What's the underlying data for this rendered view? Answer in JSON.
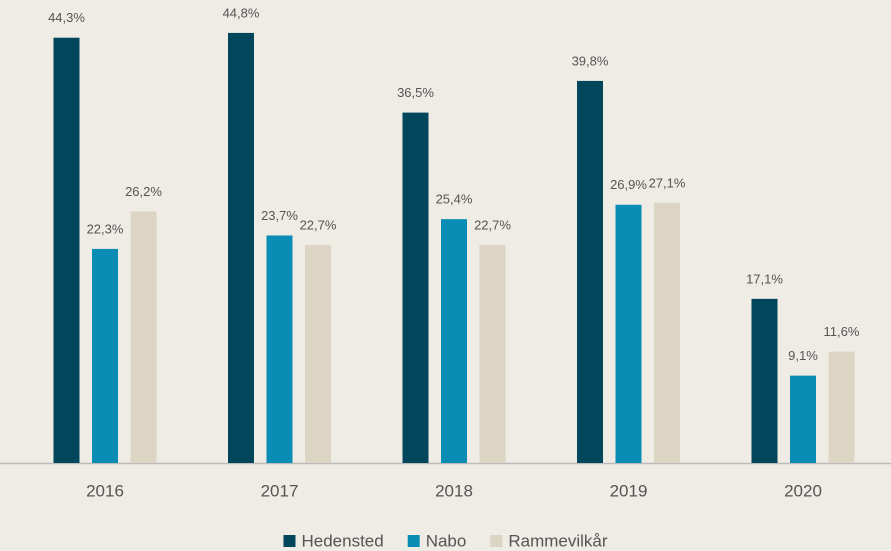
{
  "chart_data": {
    "type": "bar",
    "categories": [
      "2016",
      "2017",
      "2018",
      "2019",
      "2020"
    ],
    "series": [
      {
        "name": "Hedensted",
        "color": "#01465b",
        "values": [
          44.3,
          44.8,
          36.5,
          39.8,
          17.1
        ],
        "value_labels": [
          "44,3%",
          "44,8%",
          "36,5%",
          "39,8%",
          "17,1%"
        ]
      },
      {
        "name": "Nabo",
        "color": "#0a8db5",
        "values": [
          22.3,
          23.7,
          25.4,
          26.9,
          9.1
        ],
        "value_labels": [
          "22,3%",
          "23,7%",
          "25,4%",
          "26,9%",
          "9,1%"
        ]
      },
      {
        "name": "Rammevilkår",
        "color": "#ddd5c3",
        "values": [
          26.2,
          22.7,
          22.7,
          27.1,
          11.6
        ],
        "value_labels": [
          "26,2%",
          "22,7%",
          "22,7%",
          "27,1%",
          "11,6%"
        ]
      }
    ],
    "legend": "bottom"
  }
}
